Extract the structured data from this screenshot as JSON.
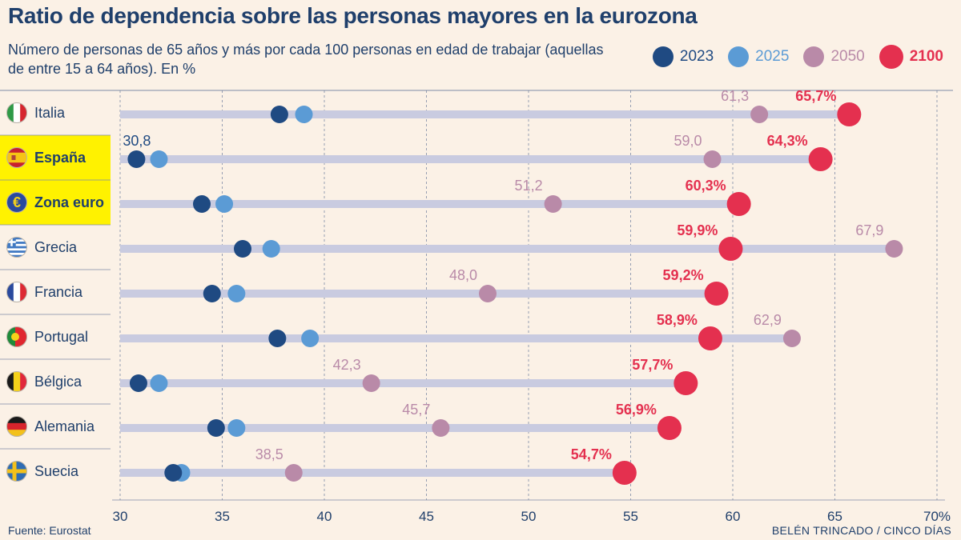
{
  "title": "Ratio de dependencia sobre las personas mayores en la eurozona",
  "subtitle": "Número de personas de 65 años y más por cada 100 personas en edad de trabajar (aquellas de entre 15 a 64 años). En %",
  "source": "Fuente: Eurostat",
  "credit": "BELÉN TRINCADO / CINCO DÍAS",
  "colors": {
    "y2023": "#1f4a82",
    "y2025": "#5b9bd5",
    "y2050": "#b98aa8",
    "y2100": "#e4304f",
    "bar": "#c9cbe0",
    "highlight": "#fff200",
    "text": "#1f3f6b",
    "grid": "#7d8aa5"
  },
  "legend": [
    {
      "label": "2023",
      "color": "#1f4a82"
    },
    {
      "label": "2025",
      "color": "#5b9bd5"
    },
    {
      "label": "2050",
      "color": "#b98aa8"
    },
    {
      "label": "2100",
      "color": "#e4304f"
    }
  ],
  "chart_data": {
    "type": "dot-range",
    "title": "Ratio de dependencia sobre las personas mayores en la eurozona",
    "xlim": [
      30,
      70
    ],
    "x_ticks": [
      "30",
      "35",
      "40",
      "45",
      "50",
      "55",
      "60",
      "65",
      "70%"
    ],
    "grid": "vertical dashed",
    "legend_position": "top-right",
    "series_names": [
      "2023",
      "2025",
      "2050",
      "2100"
    ],
    "rows": [
      {
        "country": "Italia",
        "flag": "italy-flag",
        "highlight": false,
        "y2023": 37.8,
        "y2025": 39.0,
        "y2050": 61.3,
        "y2100": 65.7,
        "label2050": "61,3",
        "label2100": "65,7%",
        "label2023": ""
      },
      {
        "country": "España",
        "flag": "spain-flag",
        "highlight": true,
        "y2023": 30.8,
        "y2025": 31.9,
        "y2050": 59.0,
        "y2100": 64.3,
        "label2050": "59,0",
        "label2100": "64,3%",
        "label2023": "30,8"
      },
      {
        "country": "Zona euro",
        "flag": "euro-flag",
        "highlight": true,
        "y2023": 34.0,
        "y2025": 35.1,
        "y2050": 51.2,
        "y2100": 60.3,
        "label2050": "51,2",
        "label2100": "60,3%",
        "label2023": ""
      },
      {
        "country": "Grecia",
        "flag": "greece-flag",
        "highlight": false,
        "y2023": 36.0,
        "y2025": 37.4,
        "y2050": 67.9,
        "y2100": 59.9,
        "label2050": "67,9",
        "label2100": "59,9%",
        "label2023": ""
      },
      {
        "country": "Francia",
        "flag": "france-flag",
        "highlight": false,
        "y2023": 34.5,
        "y2025": 35.7,
        "y2050": 48.0,
        "y2100": 59.2,
        "label2050": "48,0",
        "label2100": "59,2%",
        "label2023": ""
      },
      {
        "country": "Portugal",
        "flag": "portugal-flag",
        "highlight": false,
        "y2023": 37.7,
        "y2025": 39.3,
        "y2050": 62.9,
        "y2100": 58.9,
        "label2050": "62,9",
        "label2100": "58,9%",
        "label2023": ""
      },
      {
        "country": "Bélgica",
        "flag": "belgium-flag",
        "highlight": false,
        "y2023": 30.9,
        "y2025": 31.9,
        "y2050": 42.3,
        "y2100": 57.7,
        "label2050": "42,3",
        "label2100": "57,7%",
        "label2023": ""
      },
      {
        "country": "Alemania",
        "flag": "germany-flag",
        "highlight": false,
        "y2023": 34.7,
        "y2025": 35.7,
        "y2050": 45.7,
        "y2100": 56.9,
        "label2050": "45,7",
        "label2100": "56,9%",
        "label2023": ""
      },
      {
        "country": "Suecia",
        "flag": "sweden-flag",
        "highlight": false,
        "y2023": 32.6,
        "y2025": 33.0,
        "y2050": 38.5,
        "y2100": 54.7,
        "label2050": "38,5",
        "label2100": "54,7%",
        "label2023": ""
      }
    ]
  }
}
